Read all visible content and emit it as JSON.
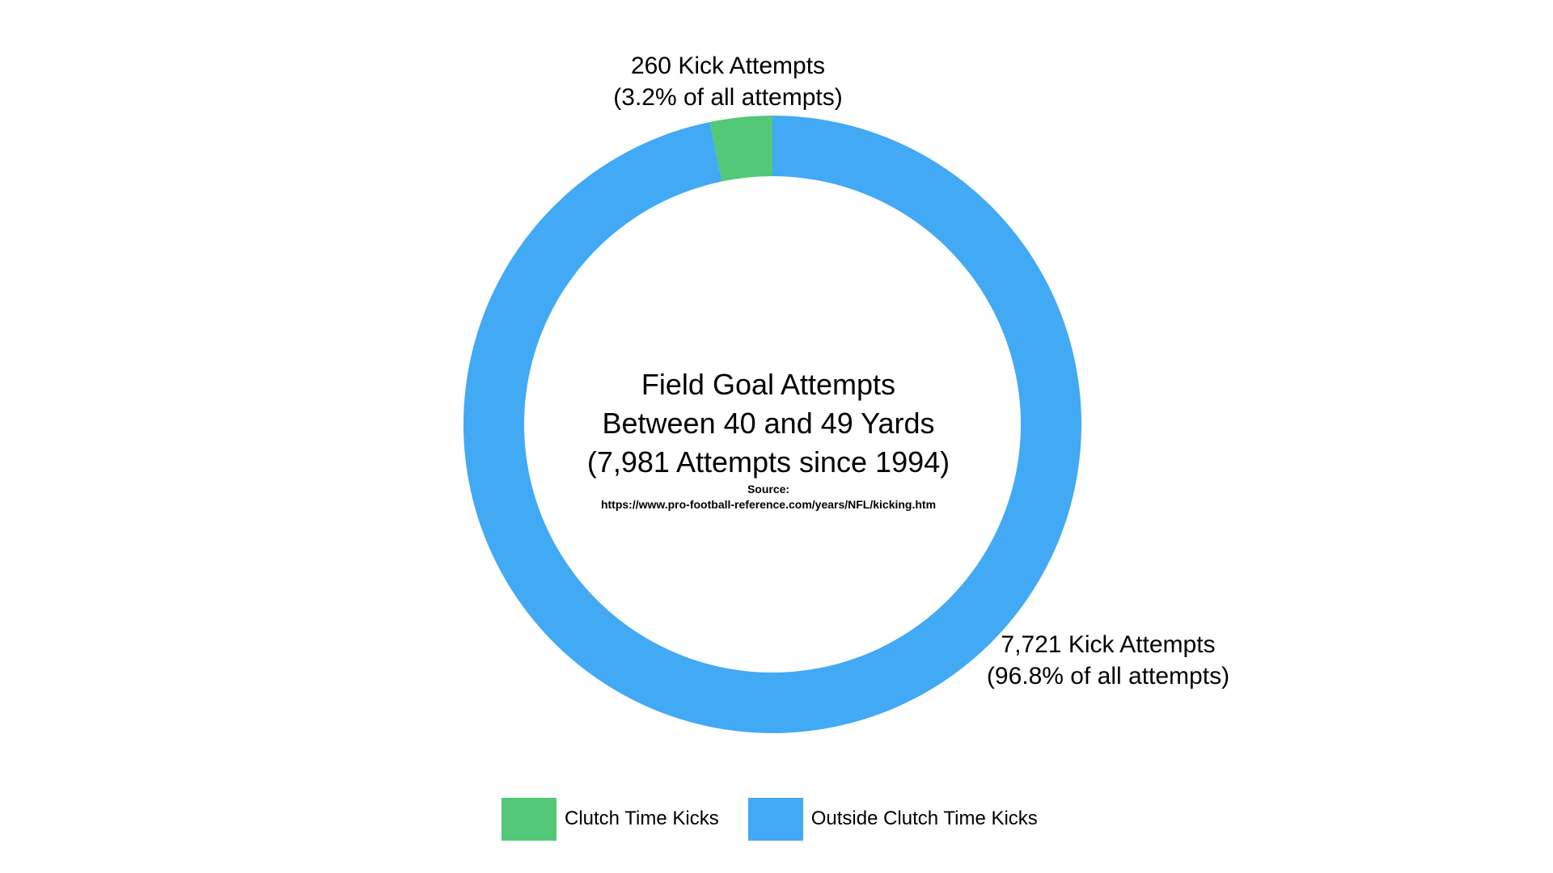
{
  "chart_data": {
    "type": "pie",
    "variant": "donut",
    "title_lines": [
      "Field Goal Attempts",
      "Between 40 and 49 Yards",
      "(7,981 Attempts since 1994)"
    ],
    "source_lines": [
      "Source:",
      "https://www.pro-football-reference.com/years/NFL/kicking.htm"
    ],
    "slices": [
      {
        "name": "Clutch Time Kicks",
        "value": 260,
        "percent": 3.2,
        "color": "#52c878",
        "label_lines": [
          "260 Kick Attempts",
          "(3.2% of all attempts)"
        ]
      },
      {
        "name": "Outside Clutch Time Kicks",
        "value": 7721,
        "percent": 96.8,
        "color": "#42a9f5",
        "label_lines": [
          "7,721 Kick Attempts",
          "(96.8% of all attempts)"
        ]
      }
    ],
    "legend_position": "bottom"
  }
}
